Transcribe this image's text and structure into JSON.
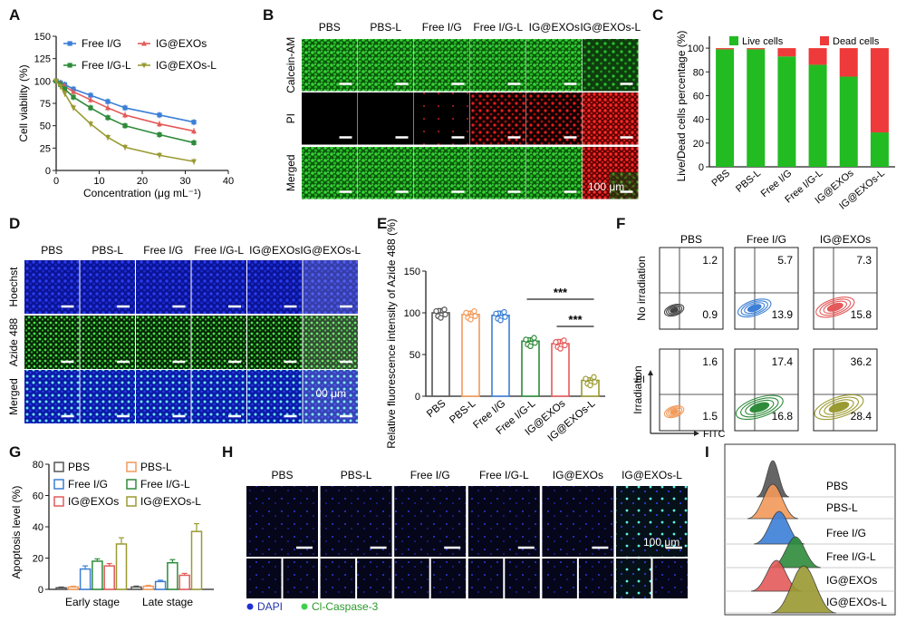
{
  "panel_letters": [
    "A",
    "B",
    "C",
    "D",
    "E",
    "F",
    "G",
    "H",
    "I"
  ],
  "colors": {
    "PBS": "#555555",
    "PBS-L": "#f29a5a",
    "Free I/G": "#3b7fd6",
    "Free I/G-L": "#2e8b3a",
    "IG@EXOs": "#e45a5a",
    "IG@EXOs-L": "#9a9a32",
    "live": "#22bb22",
    "dead": "#ee3a3a",
    "dapi": "#1f2fd4",
    "casp": "#3ed04a"
  },
  "panel_b": {
    "columns": [
      "PBS",
      "PBS-L",
      "Free I/G",
      "Free I/G-L",
      "IG@EXOs",
      "IG@EXOs-L"
    ],
    "rows": [
      "Calcein-AM",
      "PI",
      "Merged"
    ],
    "scale": "100 μm"
  },
  "panel_d": {
    "columns": [
      "PBS",
      "PBS-L",
      "Free I/G",
      "Free I/G-L",
      "IG@EXOs",
      "IG@EXOs-L"
    ],
    "rows": [
      "Hoechst",
      "Azide 488",
      "Merged"
    ],
    "scale": "00 μm"
  },
  "panel_f": {
    "columns": [
      "PBS",
      "Free I/G",
      "IG@EXOs"
    ],
    "rows": [
      "No irradiation",
      "Irradiation"
    ],
    "axis_y": "PI",
    "axis_x": "FITC",
    "quadrants": [
      [
        "1.2",
        "0.9",
        "5.7",
        "13.9",
        "7.3",
        "15.8"
      ],
      [
        "1.6",
        "1.5",
        "17.4",
        "16.8",
        "36.2",
        "28.4"
      ]
    ]
  },
  "panel_h": {
    "columns": [
      "PBS",
      "PBS-L",
      "Free I/G",
      "Free I/G-L",
      "IG@EXOs",
      "IG@EXOs-L"
    ],
    "scale": "100 μm",
    "legend": [
      "DAPI",
      "Cl-Caspase-3"
    ]
  },
  "panel_i": {
    "labels": [
      "PBS",
      "PBS-L",
      "Free I/G",
      "Free I/G-L",
      "IG@EXOs",
      "IG@EXOs-L"
    ]
  },
  "chart_data": [
    {
      "panel": "A",
      "type": "line",
      "xlabel": "Concentration (μg mL⁻¹)",
      "ylabel": "Cell viability (%)",
      "xlim": [
        0,
        40
      ],
      "ylim": [
        0,
        150
      ],
      "xticks": [
        0,
        10,
        20,
        30,
        40
      ],
      "yticks": [
        0,
        25,
        50,
        75,
        100,
        125,
        150
      ],
      "legend": [
        "Free I/G",
        "IG@EXOs",
        "Free I/G-L",
        "IG@EXOs-L"
      ],
      "x": [
        0,
        1,
        2,
        4,
        8,
        12,
        16,
        24,
        32
      ],
      "series": [
        {
          "name": "Free I/G",
          "marker": "square",
          "values": [
            100,
            98,
            96,
            91,
            84,
            77,
            70,
            62,
            54
          ]
        },
        {
          "name": "IG@EXOs",
          "marker": "triangle",
          "values": [
            100,
            97,
            94,
            88,
            79,
            70,
            62,
            52,
            44
          ]
        },
        {
          "name": "Free I/G-L",
          "marker": "square",
          "values": [
            100,
            96,
            91,
            82,
            70,
            59,
            50,
            40,
            31
          ]
        },
        {
          "name": "IG@EXOs-L",
          "marker": "triangle-down",
          "values": [
            100,
            94,
            86,
            70,
            52,
            37,
            26,
            17,
            10
          ]
        }
      ]
    },
    {
      "panel": "C",
      "type": "bar",
      "stacked": true,
      "ylabel": "Live/Dead cells percentage (%)",
      "ylim": [
        0,
        110
      ],
      "yticks": [
        0,
        20,
        40,
        60,
        80,
        100
      ],
      "categories": [
        "PBS",
        "PBS-L",
        "Free I/G",
        "Free I/G-L",
        "IG@EXOs",
        "IG@EXOs-L"
      ],
      "series": [
        {
          "name": "Live cells",
          "values": [
            99,
            99,
            93,
            86,
            76,
            29
          ]
        },
        {
          "name": "Dead cells",
          "values": [
            1,
            1,
            7,
            14,
            24,
            71
          ]
        }
      ]
    },
    {
      "panel": "E",
      "type": "bar",
      "ylabel": "Relative fluorescence intensity of Azide 488 (%)",
      "ylim": [
        0,
        150
      ],
      "yticks": [
        0,
        50,
        100,
        150
      ],
      "categories": [
        "PBS",
        "PBS-L",
        "Free I/G",
        "Free I/G-L",
        "IG@EXOs",
        "IG@EXOs-L"
      ],
      "values": [
        100,
        98,
        97,
        66,
        63,
        19
      ],
      "errors": [
        5,
        4,
        5,
        4,
        5,
        3
      ],
      "annotations": [
        "***",
        "***"
      ]
    },
    {
      "panel": "G",
      "type": "bar",
      "ylabel": "Apoptosis level (%)",
      "ylim": [
        0,
        80
      ],
      "yticks": [
        0,
        20,
        40,
        60,
        80
      ],
      "categories": [
        "Early stage",
        "Late stage"
      ],
      "legend": [
        "PBS",
        "PBS-L",
        "Free I/G",
        "Free I/G-L",
        "IG@EXOs",
        "IG@EXOs-L"
      ],
      "series": [
        {
          "name": "PBS",
          "values": [
            1,
            1.5
          ]
        },
        {
          "name": "PBS-L",
          "values": [
            1.5,
            2
          ]
        },
        {
          "name": "Free I/G",
          "values": [
            13,
            5
          ]
        },
        {
          "name": "Free I/G-L",
          "values": [
            18,
            17
          ]
        },
        {
          "name": "IG@EXOs",
          "values": [
            15,
            9
          ]
        },
        {
          "name": "IG@EXOs-L",
          "values": [
            29,
            37
          ]
        }
      ],
      "errors": [
        [
          0.5,
          0.6
        ],
        [
          0.5,
          0.6
        ],
        [
          2,
          0.8
        ],
        [
          1.5,
          2
        ],
        [
          1.5,
          1.2
        ],
        [
          4,
          5
        ]
      ]
    }
  ]
}
